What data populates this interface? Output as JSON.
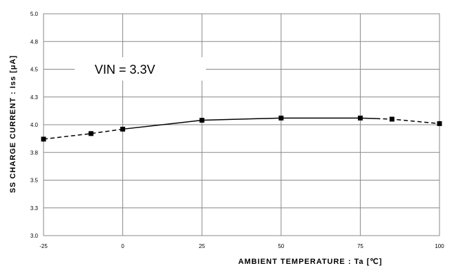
{
  "chart_data": {
    "type": "line",
    "xlabel": "AMBIENT TEMPERATURE : Ta [℃]",
    "ylabel": "SS CHARGE CURRENT : Iss [μA]",
    "xlim": [
      -25,
      100
    ],
    "ylim": [
      3.0,
      5.0
    ],
    "xticks": [
      "-25",
      "0",
      "25",
      "50",
      "75",
      "100"
    ],
    "xtick_values": [
      -25,
      0,
      25,
      50,
      75,
      100
    ],
    "x_grid_values": [
      -25,
      0,
      25,
      50,
      75,
      100
    ],
    "yticks": [
      "3.0",
      "3.3",
      "3.5",
      "3.8",
      "4.0",
      "4.3",
      "4.5",
      "4.8",
      "5.0"
    ],
    "ytick_values": [
      3.0,
      3.25,
      3.5,
      3.75,
      4.0,
      4.25,
      4.5,
      4.75,
      5.0
    ],
    "grid": true,
    "annotation": "VIN = 3.3V",
    "series": [
      {
        "values": [
          {
            "x": -25,
            "y": 3.87
          },
          {
            "x": -10,
            "y": 3.92
          },
          {
            "x": 0,
            "y": 3.96
          },
          {
            "x": 25,
            "y": 4.04
          },
          {
            "x": 50,
            "y": 4.06
          },
          {
            "x": 75,
            "y": 4.06
          },
          {
            "x": 85,
            "y": 4.05
          },
          {
            "x": 100,
            "y": 4.01
          }
        ],
        "solid_range": [
          0,
          80
        ],
        "color": "#000000",
        "marker": "square"
      }
    ]
  }
}
